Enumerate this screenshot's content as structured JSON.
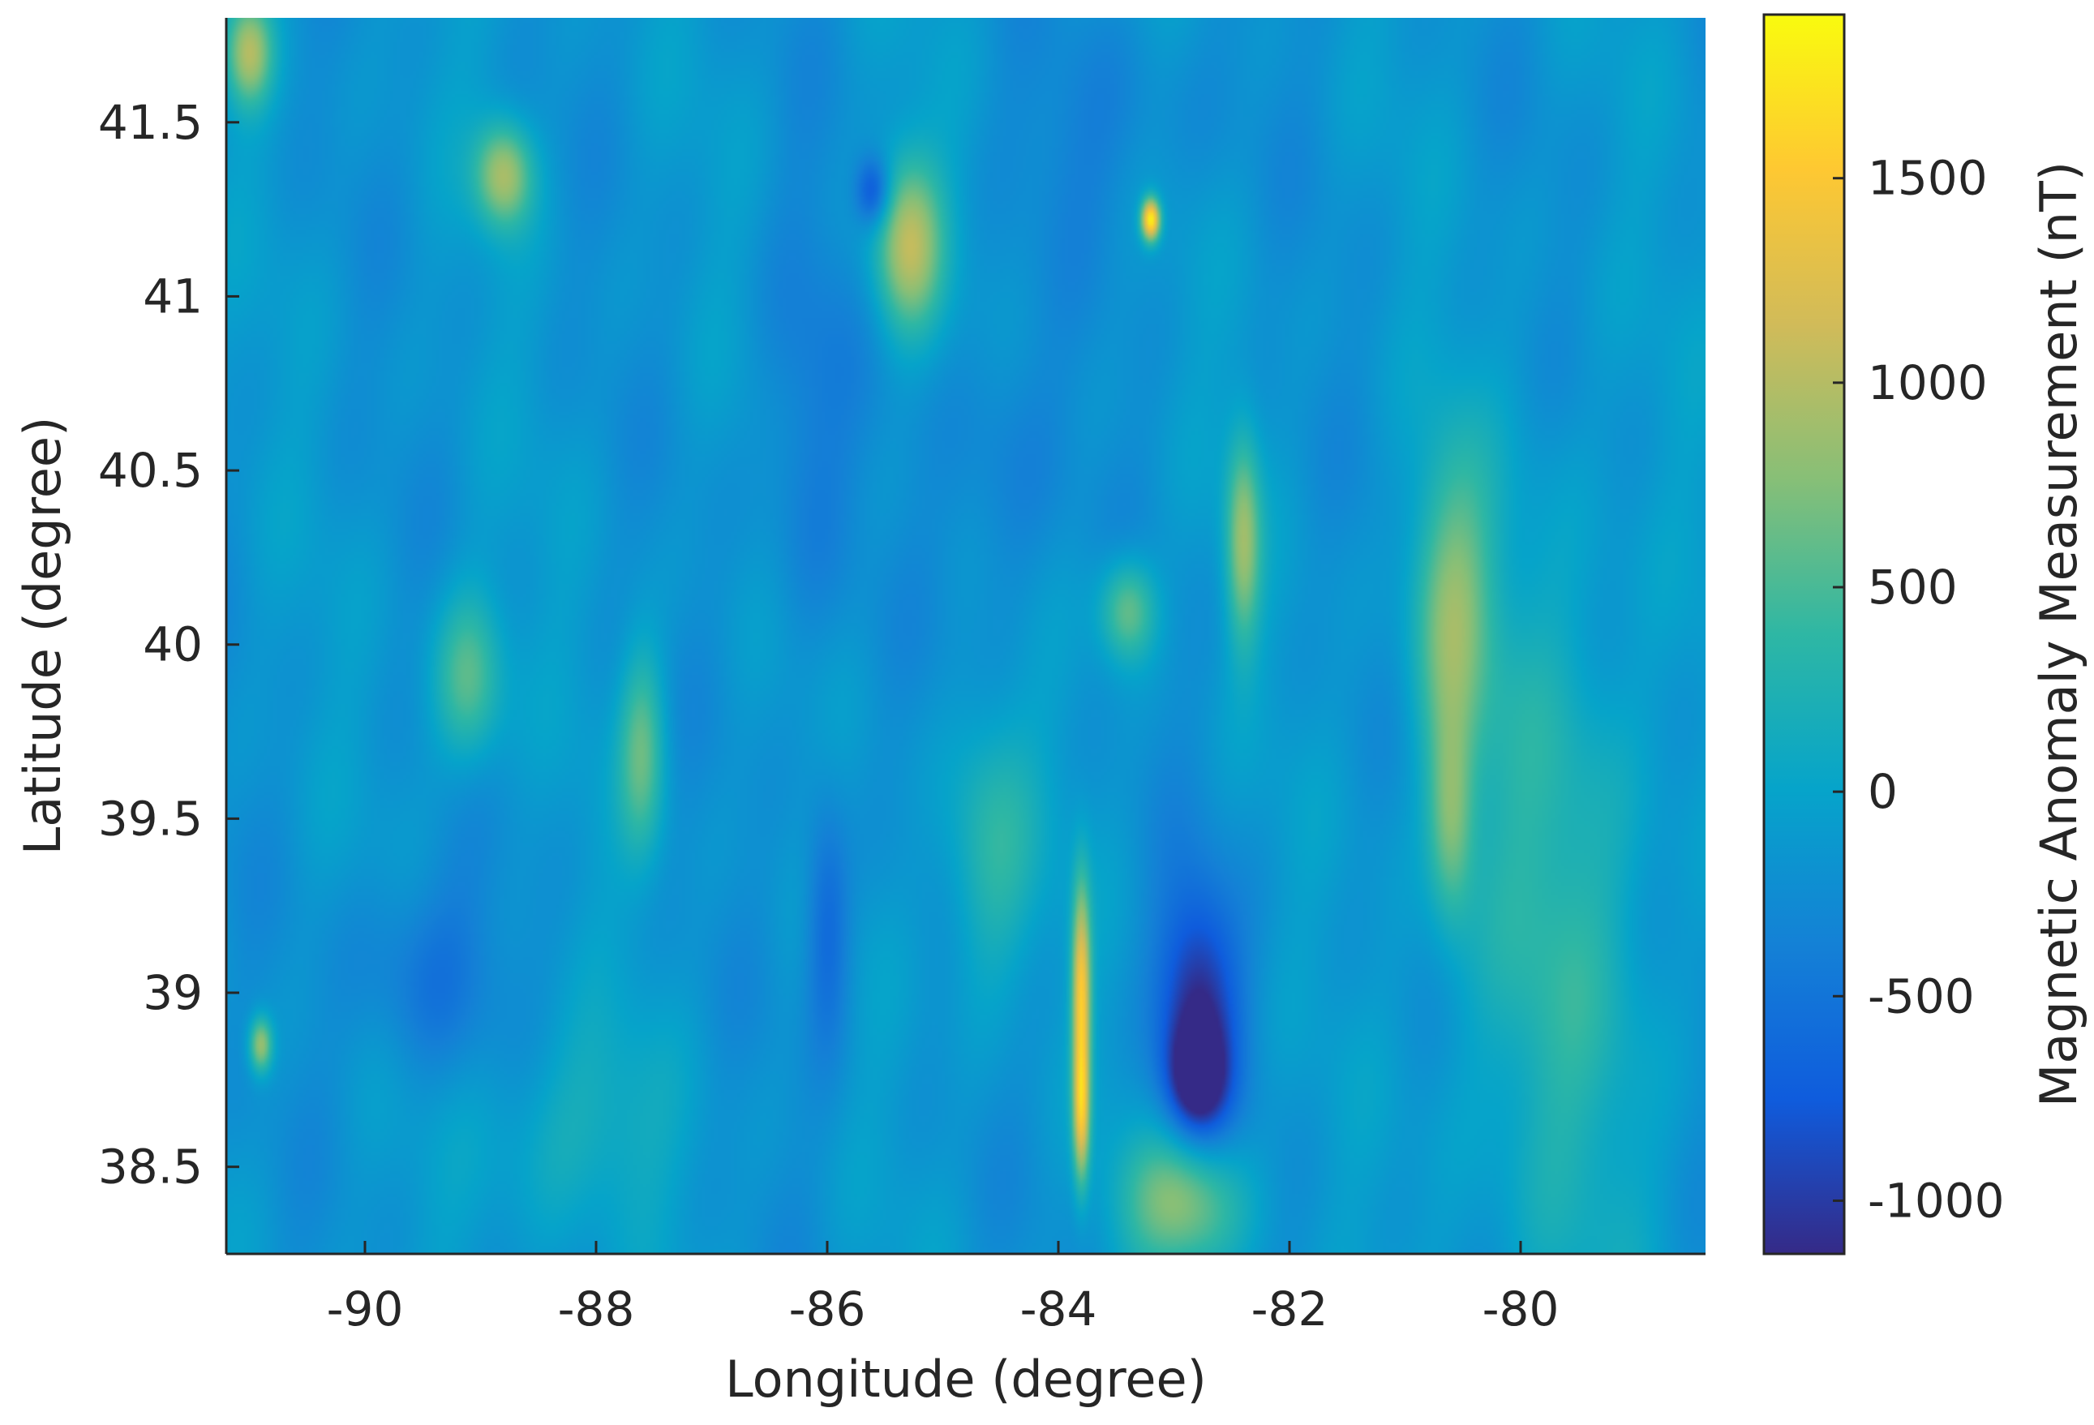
{
  "chart_data": {
    "type": "heatmap",
    "title": "",
    "xlabel": "Longitude (degree)",
    "ylabel": "Latitude (degree)",
    "xlim": [
      -91.2,
      -78.4
    ],
    "ylim": [
      38.25,
      41.8
    ],
    "xticks": [
      -90,
      -88,
      -86,
      -84,
      -82,
      -80
    ],
    "xtick_labels": [
      "-90",
      "-88",
      "-86",
      "-84",
      "-82",
      "-80"
    ],
    "yticks": [
      38.5,
      39,
      39.5,
      40,
      40.5,
      41,
      41.5
    ],
    "ytick_labels": [
      "38.5",
      "39",
      "39.5",
      "40",
      "40.5",
      "41",
      "41.5"
    ],
    "grid": false,
    "colorbar": {
      "label": "Magnetic Anomaly Measurement (nT)",
      "colormap": "parula",
      "limits": [
        -1130,
        1900
      ],
      "ticks": [
        -1000,
        -500,
        0,
        500,
        1000,
        1500
      ],
      "tick_labels": [
        "-1000",
        "-500",
        "0",
        "500",
        "1000",
        "1500"
      ],
      "colors": [
        "#352a87",
        "#0f5cdd",
        "#1481d6",
        "#06a4ca",
        "#2eb7a4",
        "#87bf77",
        "#d1bb59",
        "#fec832",
        "#f9fb0e"
      ]
    },
    "background_value": -150,
    "features": [
      {
        "lon": -82.8,
        "lat": 38.95,
        "value": -1100,
        "rx": 0.35,
        "ry": 0.35
      },
      {
        "lon": -82.8,
        "lat": 38.75,
        "value": -1000,
        "rx": 0.25,
        "ry": 0.15
      },
      {
        "lon": -83.8,
        "lat": 39.0,
        "value": 1400,
        "rx": 0.08,
        "ry": 0.3
      },
      {
        "lon": -83.8,
        "lat": 38.65,
        "value": 1100,
        "rx": 0.07,
        "ry": 0.2
      },
      {
        "lon": -83.2,
        "lat": 41.22,
        "value": 1800,
        "rx": 0.08,
        "ry": 0.06
      },
      {
        "lon": -85.3,
        "lat": 41.15,
        "value": 1000,
        "rx": 0.3,
        "ry": 0.25
      },
      {
        "lon": -85.6,
        "lat": 41.3,
        "value": -900,
        "rx": 0.15,
        "ry": 0.1
      },
      {
        "lon": -80.6,
        "lat": 40.1,
        "value": 700,
        "rx": 0.35,
        "ry": 0.45
      },
      {
        "lon": -80.6,
        "lat": 39.5,
        "value": 600,
        "rx": 0.2,
        "ry": 0.3
      },
      {
        "lon": -82.4,
        "lat": 40.3,
        "value": 800,
        "rx": 0.15,
        "ry": 0.3
      },
      {
        "lon": -83.4,
        "lat": 40.1,
        "value": 700,
        "rx": 0.25,
        "ry": 0.15
      },
      {
        "lon": -88.8,
        "lat": 41.35,
        "value": 900,
        "rx": 0.25,
        "ry": 0.15
      },
      {
        "lon": -89.1,
        "lat": 39.9,
        "value": 600,
        "rx": 0.3,
        "ry": 0.25
      },
      {
        "lon": -87.6,
        "lat": 39.7,
        "value": 600,
        "rx": 0.2,
        "ry": 0.3
      },
      {
        "lon": -86.0,
        "lat": 39.2,
        "value": -700,
        "rx": 0.2,
        "ry": 0.35
      },
      {
        "lon": -82.9,
        "lat": 38.4,
        "value": 800,
        "rx": 0.5,
        "ry": 0.2
      },
      {
        "lon": -91.0,
        "lat": 41.7,
        "value": 900,
        "rx": 0.2,
        "ry": 0.15
      },
      {
        "lon": -89.5,
        "lat": 39.05,
        "value": -500,
        "rx": 0.6,
        "ry": 0.3
      },
      {
        "lon": -84.5,
        "lat": 40.5,
        "value": -400,
        "rx": 0.5,
        "ry": 0.5
      },
      {
        "lon": -83.5,
        "lat": 41.5,
        "value": -350,
        "rx": 0.8,
        "ry": 0.3
      },
      {
        "lon": -86.2,
        "lat": 40.6,
        "value": -450,
        "rx": 0.4,
        "ry": 0.6
      },
      {
        "lon": -79.7,
        "lat": 39.2,
        "value": 300,
        "rx": 0.9,
        "ry": 1.1
      },
      {
        "lon": -90.9,
        "lat": 38.85,
        "value": 900,
        "rx": 0.1,
        "ry": 0.08
      },
      {
        "lon": -84.6,
        "lat": 39.4,
        "value": 400,
        "rx": 0.4,
        "ry": 0.4
      },
      {
        "lon": -88.2,
        "lat": 38.6,
        "value": 200,
        "rx": 0.8,
        "ry": 0.3
      }
    ]
  }
}
